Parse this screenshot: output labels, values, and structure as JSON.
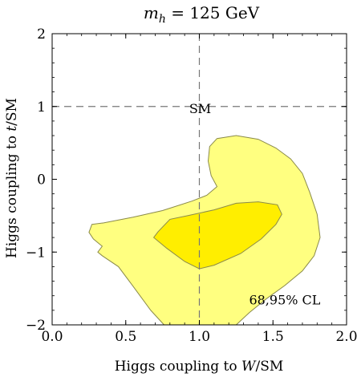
{
  "chart_data": {
    "type": "contour",
    "title_prefix": "m",
    "title_sub": "h",
    "title_suffix": " = 125 GeV",
    "xlabel_prefix": "Higgs coupling to ",
    "xlabel_var": "W",
    "xlabel_suffix": "/SM",
    "ylabel_prefix": "Higgs coupling to ",
    "ylabel_var": "t",
    "ylabel_suffix": "/SM",
    "xlim": [
      0,
      2
    ],
    "ylim": [
      -2,
      2
    ],
    "xticks": [
      0,
      0.5,
      1,
      1.5,
      2
    ],
    "xtick_labels": [
      "0.0",
      "0.5",
      "1.0",
      "1.5",
      "2.0"
    ],
    "yticks": [
      -2,
      -1,
      0,
      1,
      2
    ],
    "ytick_labels": [
      "−2",
      "−1",
      "0",
      "1",
      "2"
    ],
    "grid": false,
    "sm_point": {
      "x": 1.0,
      "y": 1.0,
      "label": "SM"
    },
    "reference_lines": [
      {
        "orientation": "vertical",
        "value": 1.0,
        "style": "dashed"
      },
      {
        "orientation": "horizontal",
        "value": 1.0,
        "style": "dashed"
      }
    ],
    "legend_text": "68,95% CL",
    "regions": [
      {
        "level": "95%",
        "color": "#ffff80",
        "points": [
          [
            0.27,
            -0.62
          ],
          [
            0.35,
            -0.6
          ],
          [
            0.55,
            -0.52
          ],
          [
            0.75,
            -0.43
          ],
          [
            0.95,
            -0.3
          ],
          [
            1.05,
            -0.22
          ],
          [
            1.12,
            -0.1
          ],
          [
            1.08,
            0.05
          ],
          [
            1.06,
            0.25
          ],
          [
            1.07,
            0.45
          ],
          [
            1.12,
            0.56
          ],
          [
            1.25,
            0.6
          ],
          [
            1.4,
            0.55
          ],
          [
            1.52,
            0.43
          ],
          [
            1.62,
            0.28
          ],
          [
            1.7,
            0.08
          ],
          [
            1.75,
            -0.18
          ],
          [
            1.8,
            -0.48
          ],
          [
            1.82,
            -0.8
          ],
          [
            1.78,
            -1.05
          ],
          [
            1.7,
            -1.26
          ],
          [
            1.58,
            -1.46
          ],
          [
            1.45,
            -1.65
          ],
          [
            1.34,
            -1.83
          ],
          [
            1.25,
            -2.0
          ],
          [
            0.76,
            -2.0
          ],
          [
            0.67,
            -1.8
          ],
          [
            0.55,
            -1.47
          ],
          [
            0.45,
            -1.2
          ],
          [
            0.34,
            -1.05
          ],
          [
            0.31,
            -1.0
          ],
          [
            0.34,
            -0.92
          ],
          [
            0.28,
            -0.82
          ],
          [
            0.25,
            -0.73
          ]
        ]
      },
      {
        "level": "68%",
        "color": "#ffee00",
        "points": [
          [
            0.72,
            -0.72
          ],
          [
            0.8,
            -0.55
          ],
          [
            0.92,
            -0.5
          ],
          [
            1.1,
            -0.42
          ],
          [
            1.25,
            -0.33
          ],
          [
            1.4,
            -0.31
          ],
          [
            1.53,
            -0.35
          ],
          [
            1.56,
            -0.48
          ],
          [
            1.52,
            -0.62
          ],
          [
            1.42,
            -0.82
          ],
          [
            1.28,
            -1.02
          ],
          [
            1.1,
            -1.18
          ],
          [
            1.0,
            -1.23
          ],
          [
            0.9,
            -1.13
          ],
          [
            0.78,
            -0.95
          ],
          [
            0.69,
            -0.8
          ]
        ]
      }
    ]
  }
}
